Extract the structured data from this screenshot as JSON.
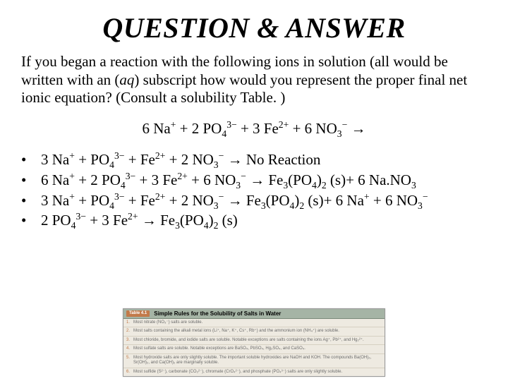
{
  "title": "QUESTION & ANSWER",
  "question": {
    "p1": "If you began a reaction with the following ions in solution (all would be written with an (",
    "aq": "aq",
    "p2": ") subscript how would you represent the proper final net ionic equation? (Consult a solubility Table. )"
  },
  "equation": "6 Na⁺ + 2 PO₄³⁻ + 3 Fe²⁺ + 6 NO₃⁻ →",
  "choiceA": "3 Na⁺ + PO₄³⁻ + Fe²⁺ + 2 NO₃⁻ → No Reaction",
  "choiceB": "6 Na⁺ + 2 PO₄³⁻ + 3 Fe²⁺ + 6 NO₃⁻ → Fe₃(PO₄)₂ (s)+ 6 Na.NO₃",
  "choiceC": "3 Na⁺ + PO₄³⁻ + Fe²⁺ + 2 NO₃⁻ → Fe₃(PO₄)₂ (s)+ 6 Na⁺ + 6 NO₃⁻",
  "choiceD": "2 PO₄³⁻ + 3 Fe²⁺ → Fe₃(PO₄)₂ (s)",
  "bullet": "•",
  "table": {
    "tab": "Table 4.1",
    "heading": "Simple Rules for the Solubility of Salts in Water",
    "rules": [
      {
        "n": "1.",
        "t": "Most nitrate (NO₃⁻) salts are soluble."
      },
      {
        "n": "2.",
        "t": "Most salts containing the alkali metal ions (Li⁺, Na⁺, K⁺, Cs⁺, Rb⁺) and the ammonium ion (NH₄⁺) are soluble."
      },
      {
        "n": "3.",
        "t": "Most chloride, bromide, and iodide salts are soluble. Notable exceptions are salts containing the ions Ag⁺, Pb²⁺, and Hg₂²⁺."
      },
      {
        "n": "4.",
        "t": "Most sulfate salts are soluble. Notable exceptions are BaSO₄, PbSO₄, Hg₂SO₄, and CaSO₄."
      },
      {
        "n": "5.",
        "t": "Most hydroxide salts are only slightly soluble. The important soluble hydroxides are NaOH and KOH. The compounds Ba(OH)₂, Sr(OH)₂, and Ca(OH)₂ are marginally soluble."
      },
      {
        "n": "6.",
        "t": "Most sulfide (S²⁻), carbonate (CO₃²⁻), chromate (CrO₄²⁻), and phosphate (PO₄³⁻) salts are only slightly soluble."
      }
    ]
  },
  "colors": {
    "background": "#ffffff",
    "text": "#000000",
    "tableBg": "#eeeae1",
    "tableHeaderBg": "#a5b4a5",
    "tableAccent": "#c27a4a",
    "ruleText": "#6b6b6b",
    "ruleBorder": "#d6d0c2"
  }
}
